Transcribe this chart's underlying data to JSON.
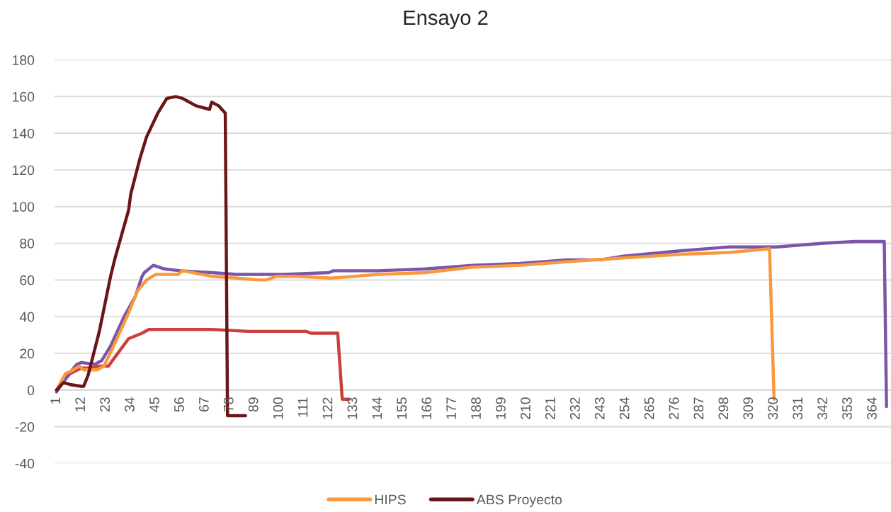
{
  "chart_data": {
    "type": "line",
    "title": "Ensayo 2",
    "series": [
      {
        "color": "#c9403c",
        "x": [
          1,
          7,
          12,
          16,
          20,
          24,
          27,
          33,
          39,
          42,
          49,
          70,
          86,
          101,
          112,
          114,
          126,
          128,
          131
        ],
        "values": [
          0,
          9,
          12,
          12,
          13,
          13,
          18,
          28,
          31,
          33,
          33,
          33,
          32,
          32,
          32,
          31,
          31,
          -5,
          -5
        ]
      },
      {
        "color": "#7b55a8",
        "x": [
          1,
          6,
          10,
          12,
          18,
          21,
          25,
          31,
          36,
          39,
          40,
          44,
          49,
          56,
          70,
          81,
          102,
          122,
          124,
          144,
          165,
          186,
          207,
          228,
          243,
          253,
          279,
          300,
          321,
          342,
          356,
          369,
          370
        ],
        "values": [
          -1,
          8,
          14,
          15,
          14,
          16,
          24,
          40,
          51,
          62,
          64,
          68,
          66,
          65,
          64,
          63,
          63,
          64,
          65,
          65,
          66,
          68,
          69,
          71,
          71,
          73,
          76,
          78,
          78,
          80,
          81,
          81,
          -9
        ]
      },
      {
        "name": "HIPS",
        "color": "#f7993c",
        "x": [
          1,
          5,
          7,
          11,
          13,
          19,
          22,
          26,
          33,
          37,
          41,
          45,
          55,
          57,
          70,
          81,
          91,
          94,
          99,
          108,
          123,
          144,
          165,
          186,
          207,
          228,
          253,
          279,
          300,
          318,
          320
        ],
        "values": [
          0,
          9,
          10,
          13,
          11,
          11,
          13,
          23,
          42,
          54,
          60,
          63,
          63,
          65,
          62,
          61,
          60,
          60,
          62,
          62,
          61,
          63,
          64,
          67,
          68,
          70,
          72,
          74,
          75,
          77,
          -5
        ]
      },
      {
        "name": "ABS Proyecto",
        "color": "#6b1616",
        "x": [
          1,
          4,
          7,
          12,
          13,
          15,
          20,
          23,
          25,
          27,
          33,
          34,
          38,
          41,
          46,
          50,
          54,
          57,
          63,
          69,
          70,
          73,
          76,
          77,
          85
        ],
        "values": [
          0,
          4,
          3,
          2,
          2,
          8,
          32,
          50,
          62,
          72,
          98,
          107,
          126,
          138,
          151,
          159,
          160,
          159,
          155,
          153,
          157,
          155,
          151,
          -14,
          -14
        ]
      }
    ],
    "xlim": [
      0,
      372
    ],
    "xticks": [
      1,
      12,
      23,
      34,
      45,
      56,
      67,
      78,
      89,
      100,
      111,
      122,
      133,
      144,
      155,
      166,
      177,
      188,
      199,
      210,
      221,
      232,
      243,
      254,
      265,
      276,
      287,
      298,
      309,
      320,
      331,
      342,
      353,
      364
    ],
    "ylim": [
      -40,
      180
    ],
    "yticks": [
      -40,
      -20,
      0,
      20,
      40,
      60,
      80,
      100,
      120,
      140,
      160,
      180
    ],
    "grid": "y",
    "legend": "bottom",
    "line_style": "solid"
  }
}
